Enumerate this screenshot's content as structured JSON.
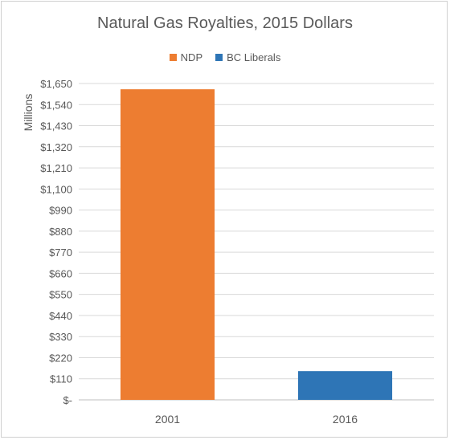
{
  "chart_data": {
    "type": "bar",
    "title": "Natural Gas Royalties, 2015 Dollars",
    "ylabel": "Millions",
    "xlabel": "",
    "categories": [
      "2001",
      "2016"
    ],
    "series": [
      {
        "name": "NDP",
        "color": "#ED7D31",
        "values": [
          1620,
          null
        ]
      },
      {
        "name": "BC Liberals",
        "color": "#2E75B6",
        "values": [
          null,
          150
        ]
      }
    ],
    "ylim": [
      0,
      1650
    ],
    "yticks": [
      0,
      110,
      220,
      330,
      440,
      550,
      660,
      770,
      880,
      990,
      1100,
      1210,
      1320,
      1430,
      1540,
      1650
    ],
    "ytick_labels": [
      "$-",
      "$110",
      "$220",
      "$330",
      "$440",
      "$550",
      "$660",
      "$770",
      "$880",
      "$990",
      "$1,100",
      "$1,210",
      "$1,320",
      "$1,430",
      "$1,540",
      "$1,650"
    ],
    "grid": true,
    "legend_position": "top-center"
  }
}
